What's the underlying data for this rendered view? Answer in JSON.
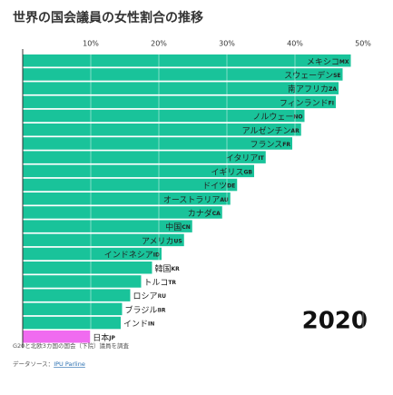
{
  "chart_data": {
    "type": "barh",
    "title": "世界の国会議員の女性割合の推移",
    "categories": [
      "メキシコ",
      "スウェーデン",
      "南アフリカ",
      "フィンランド",
      "ノルウェー",
      "アルゼンチン",
      "フランス",
      "イタリア",
      "イギリス",
      "ドイツ",
      "オーストラリア",
      "カナダ",
      "中国",
      "アメリカ",
      "インドネシア",
      "韓国",
      "トルコ",
      "ロシア",
      "ブラジル",
      "インド",
      "日本"
    ],
    "codes": [
      "MX",
      "SE",
      "ZA",
      "FI",
      "NO",
      "AR",
      "FR",
      "IT",
      "GB",
      "DE",
      "AU",
      "CA",
      "CN",
      "US",
      "ID",
      "KR",
      "TR",
      "RU",
      "BR",
      "IN",
      "JP"
    ],
    "values": [
      48.2,
      47.0,
      46.4,
      46.0,
      41.4,
      40.9,
      39.6,
      35.7,
      34.0,
      31.5,
      30.5,
      29.3,
      24.9,
      23.7,
      20.4,
      19.0,
      17.4,
      15.8,
      14.6,
      14.4,
      9.9
    ],
    "colors": [
      "#19c39a",
      "#19c39a",
      "#19c39a",
      "#19c39a",
      "#19c39a",
      "#19c39a",
      "#19c39a",
      "#19c39a",
      "#19c39a",
      "#19c39a",
      "#19c39a",
      "#19c39a",
      "#19c39a",
      "#19c39a",
      "#19c39a",
      "#19c39a",
      "#19c39a",
      "#19c39a",
      "#19c39a",
      "#19c39a",
      "#f06bf0"
    ],
    "xlim": [
      0,
      50
    ],
    "xticks": [
      {
        "value": 10,
        "label": "10%"
      },
      {
        "value": 20,
        "label": "20%"
      },
      {
        "value": 30,
        "label": "30%"
      },
      {
        "value": 40,
        "label": "40%"
      },
      {
        "value": 50,
        "label": "50%"
      }
    ],
    "grid": true,
    "annotation": "2020",
    "note": "G20と北欧3カ国の国会（下院）議員を調査",
    "source_label": "データソース：",
    "source_link": "IPU Parline"
  }
}
